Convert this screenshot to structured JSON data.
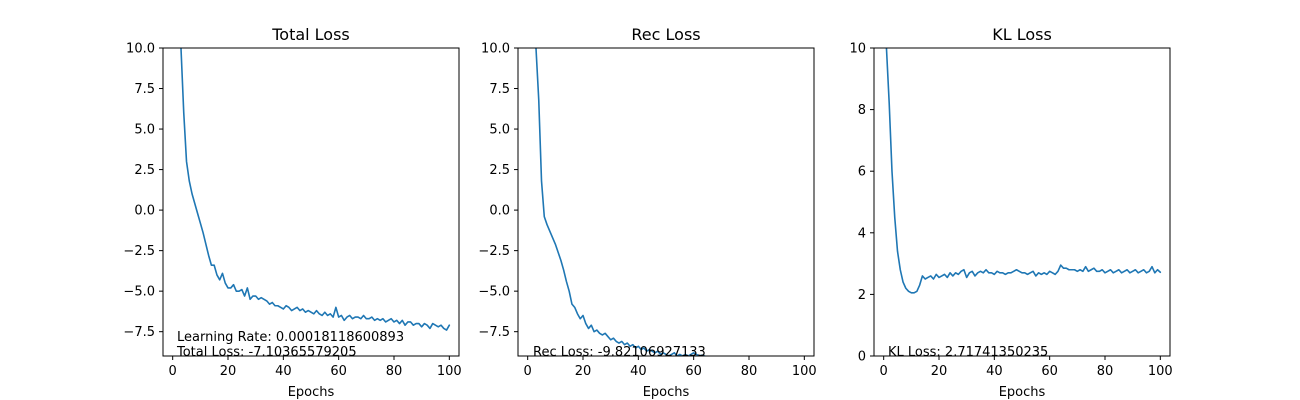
{
  "chart_data": [
    {
      "type": "line",
      "title": "Total Loss",
      "xlabel": "Epochs",
      "ylabel": "",
      "xlim": [
        -3.5,
        103.5
      ],
      "ylim": [
        -9,
        10
      ],
      "xticks": [
        0,
        20,
        40,
        60,
        80,
        100
      ],
      "yticks": [
        -7.5,
        -5.0,
        -2.5,
        0.0,
        2.5,
        5.0,
        7.5,
        10.0
      ],
      "ytick_labels": [
        "−7.5",
        "−5.0",
        "−2.5",
        "0.0",
        "2.5",
        "5.0",
        "7.5",
        "10.0"
      ],
      "color": "#1f77b4",
      "annotations": [
        "Learning Rate: 0.00018118600893",
        "Total Loss: -7.10365579205"
      ],
      "series": [
        {
          "x": [
            3,
            4,
            5,
            6,
            7,
            8,
            9,
            10,
            11,
            12,
            13,
            14,
            15,
            16,
            17,
            18,
            19,
            20,
            21,
            22,
            23,
            24,
            25,
            26,
            27,
            28,
            29,
            30,
            31,
            32,
            33,
            34,
            35,
            36,
            37,
            38,
            39,
            40,
            41,
            42,
            43,
            44,
            45,
            46,
            47,
            48,
            49,
            50,
            51,
            52,
            53,
            54,
            55,
            56,
            57,
            58,
            59,
            60,
            61,
            62,
            63,
            64,
            65,
            66,
            67,
            68,
            69,
            70,
            71,
            72,
            73,
            74,
            75,
            76,
            77,
            78,
            79,
            80,
            81,
            82,
            83,
            84,
            85,
            86,
            87,
            88,
            89,
            90,
            91,
            92,
            93,
            94,
            95,
            96,
            97,
            98,
            99,
            100
          ],
          "y": [
            10,
            6,
            3,
            1.8,
            1.0,
            0.4,
            -0.2,
            -0.8,
            -1.4,
            -2.1,
            -2.8,
            -3.4,
            -3.4,
            -4.0,
            -4.3,
            -3.9,
            -4.5,
            -4.8,
            -4.8,
            -4.6,
            -5.0,
            -5.0,
            -4.9,
            -5.3,
            -4.8,
            -5.5,
            -5.3,
            -5.3,
            -5.5,
            -5.4,
            -5.5,
            -5.6,
            -5.8,
            -5.7,
            -5.9,
            -5.9,
            -6.0,
            -6.1,
            -5.9,
            -6.0,
            -6.2,
            -6.1,
            -6.0,
            -6.2,
            -6.1,
            -6.3,
            -6.2,
            -6.3,
            -6.4,
            -6.2,
            -6.4,
            -6.5,
            -6.3,
            -6.5,
            -6.4,
            -6.6,
            -6.0,
            -6.6,
            -6.5,
            -6.8,
            -6.6,
            -6.5,
            -6.7,
            -6.6,
            -6.6,
            -6.7,
            -6.5,
            -6.7,
            -6.7,
            -6.6,
            -6.8,
            -6.7,
            -6.8,
            -6.7,
            -6.9,
            -6.8,
            -6.7,
            -6.9,
            -6.8,
            -7.0,
            -6.8,
            -7.1,
            -6.9,
            -6.9,
            -7.1,
            -7.0,
            -7.0,
            -7.2,
            -7.0,
            -7.1,
            -7.3,
            -7.0,
            -7.1,
            -7.2,
            -7.1,
            -7.3,
            -7.4,
            -7.1
          ]
        }
      ]
    },
    {
      "type": "line",
      "title": "Rec Loss",
      "xlabel": "Epochs",
      "ylabel": "",
      "xlim": [
        -3.5,
        103.5
      ],
      "ylim": [
        -9,
        10
      ],
      "xticks": [
        0,
        20,
        40,
        60,
        80,
        100
      ],
      "yticks": [
        -7.5,
        -5.0,
        -2.5,
        0.0,
        2.5,
        5.0,
        7.5,
        10.0
      ],
      "ytick_labels": [
        "−7.5",
        "−5.0",
        "−2.5",
        "0.0",
        "2.5",
        "5.0",
        "7.5",
        "10.0"
      ],
      "color": "#1f77b4",
      "annotations": [
        "Rec Loss: -9.82106927133"
      ],
      "series": [
        {
          "x": [
            3,
            4,
            5,
            6,
            7,
            8,
            9,
            10,
            11,
            12,
            13,
            14,
            15,
            16,
            17,
            18,
            19,
            20,
            21,
            22,
            23,
            24,
            25,
            26,
            27,
            28,
            29,
            30,
            31,
            32,
            33,
            34,
            35,
            36,
            37,
            38,
            39,
            40,
            41,
            42,
            43,
            44,
            45,
            46,
            47,
            48,
            49,
            50,
            51,
            52,
            53,
            54,
            55,
            56,
            57,
            58,
            59,
            60,
            61,
            62,
            63,
            64
          ],
          "y": [
            10,
            6.8,
            1.8,
            -0.4,
            -0.9,
            -1.3,
            -1.7,
            -2.1,
            -2.6,
            -3.1,
            -3.7,
            -4.4,
            -5.0,
            -5.8,
            -6.0,
            -6.4,
            -6.7,
            -6.5,
            -7.0,
            -7.3,
            -7.1,
            -7.5,
            -7.4,
            -7.6,
            -7.7,
            -7.6,
            -7.8,
            -8.0,
            -7.9,
            -8.1,
            -8.2,
            -8.1,
            -8.3,
            -8.2,
            -8.4,
            -8.3,
            -8.5,
            -8.4,
            -8.6,
            -8.5,
            -8.7,
            -8.6,
            -8.7,
            -8.8,
            -8.7,
            -8.9,
            -8.8,
            -8.9,
            -9.0,
            -8.9,
            -8.8,
            -9.0,
            -8.9,
            -9.0,
            -8.9,
            -9.0,
            -8.9,
            -8.8,
            -8.9,
            -9.0,
            -8.95,
            -9.0
          ]
        }
      ]
    },
    {
      "type": "line",
      "title": "KL Loss",
      "xlabel": "Epochs",
      "ylabel": "",
      "xlim": [
        -3.5,
        103.5
      ],
      "ylim": [
        0,
        10
      ],
      "xticks": [
        0,
        20,
        40,
        60,
        80,
        100
      ],
      "yticks": [
        0,
        2,
        4,
        6,
        8,
        10
      ],
      "ytick_labels": [
        "0",
        "2",
        "4",
        "6",
        "8",
        "10"
      ],
      "color": "#1f77b4",
      "annotations": [
        "KL Loss: 2.71741350235"
      ],
      "series": [
        {
          "x": [
            1,
            2,
            3,
            4,
            5,
            6,
            7,
            8,
            9,
            10,
            11,
            12,
            13,
            14,
            15,
            16,
            17,
            18,
            19,
            20,
            21,
            22,
            23,
            24,
            25,
            26,
            27,
            28,
            29,
            30,
            31,
            32,
            33,
            34,
            35,
            36,
            37,
            38,
            39,
            40,
            41,
            42,
            43,
            44,
            45,
            46,
            47,
            48,
            49,
            50,
            51,
            52,
            53,
            54,
            55,
            56,
            57,
            58,
            59,
            60,
            61,
            62,
            63,
            64,
            65,
            66,
            67,
            68,
            69,
            70,
            71,
            72,
            73,
            74,
            75,
            76,
            77,
            78,
            79,
            80,
            81,
            82,
            83,
            84,
            85,
            86,
            87,
            88,
            89,
            90,
            91,
            92,
            93,
            94,
            95,
            96,
            97,
            98,
            99,
            100
          ],
          "y": [
            10,
            8.2,
            6.0,
            4.5,
            3.4,
            2.8,
            2.4,
            2.2,
            2.1,
            2.05,
            2.05,
            2.1,
            2.3,
            2.6,
            2.5,
            2.55,
            2.6,
            2.5,
            2.65,
            2.55,
            2.6,
            2.65,
            2.55,
            2.7,
            2.6,
            2.7,
            2.65,
            2.75,
            2.8,
            2.55,
            2.7,
            2.75,
            2.6,
            2.7,
            2.75,
            2.7,
            2.8,
            2.7,
            2.7,
            2.65,
            2.75,
            2.7,
            2.7,
            2.65,
            2.7,
            2.7,
            2.75,
            2.8,
            2.75,
            2.7,
            2.7,
            2.65,
            2.7,
            2.75,
            2.6,
            2.7,
            2.65,
            2.7,
            2.65,
            2.75,
            2.7,
            2.65,
            2.75,
            2.95,
            2.85,
            2.85,
            2.8,
            2.8,
            2.8,
            2.75,
            2.8,
            2.75,
            2.9,
            2.75,
            2.8,
            2.85,
            2.75,
            2.75,
            2.8,
            2.7,
            2.75,
            2.8,
            2.7,
            2.75,
            2.8,
            2.7,
            2.75,
            2.8,
            2.7,
            2.75,
            2.8,
            2.7,
            2.75,
            2.8,
            2.7,
            2.75,
            2.9,
            2.7,
            2.8,
            2.72
          ]
        }
      ]
    }
  ]
}
